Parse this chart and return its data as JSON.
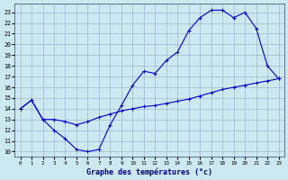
{
  "xlabel": "Graphe des températures (°c)",
  "background_color": "#cce8f0",
  "grid_color": "#99aacc",
  "line_color": "#0000cc",
  "xlim": [
    -0.5,
    23.5
  ],
  "ylim": [
    9.5,
    23.8
  ],
  "xticks": [
    0,
    1,
    2,
    3,
    4,
    5,
    6,
    7,
    8,
    9,
    10,
    11,
    12,
    13,
    14,
    15,
    16,
    17,
    18,
    19,
    20,
    21,
    22,
    23
  ],
  "yticks": [
    10,
    11,
    12,
    13,
    14,
    15,
    16,
    17,
    18,
    19,
    20,
    21,
    22,
    23
  ],
  "line1_x": [
    0,
    1,
    2,
    3,
    4,
    5,
    6,
    7,
    8,
    9,
    10,
    11,
    12,
    13,
    14,
    15,
    16,
    17,
    18,
    19,
    20,
    21,
    22,
    23
  ],
  "line1_y": [
    14.0,
    14.8,
    13.0,
    12.0,
    11.2,
    10.2,
    10.0,
    10.2,
    12.5,
    14.3,
    16.2,
    17.5,
    17.3,
    18.5,
    19.3,
    21.3,
    22.5,
    23.2,
    23.2,
    22.5,
    23.0,
    21.5,
    18.0,
    16.8
  ],
  "line2_x": [
    0,
    1,
    2,
    3,
    4,
    5,
    6,
    7,
    8,
    9,
    10,
    11,
    12,
    13,
    14,
    15,
    16,
    17,
    18,
    19,
    20,
    21,
    22,
    23
  ],
  "line2_y": [
    14.0,
    14.8,
    13.0,
    13.0,
    12.8,
    12.5,
    12.8,
    13.2,
    13.5,
    13.8,
    14.0,
    14.2,
    14.3,
    14.5,
    14.7,
    14.9,
    15.2,
    15.5,
    15.8,
    16.0,
    16.2,
    16.4,
    16.6,
    16.8
  ]
}
